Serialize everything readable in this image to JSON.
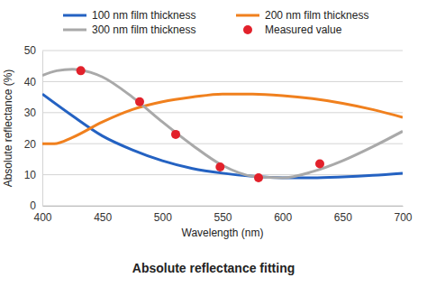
{
  "chart_data": {
    "type": "line",
    "title": "Absolute reflectance fitting",
    "x_label": "Wavelength (nm)",
    "y_label": "Absolute reflectance (%)",
    "xlim": [
      400,
      700
    ],
    "xticks": [
      400,
      450,
      500,
      550,
      600,
      650,
      700
    ],
    "ylim": [
      0,
      50
    ],
    "yticks": [
      0,
      10,
      20,
      30,
      40,
      50
    ],
    "grid": true,
    "legend": "top",
    "series": [
      {
        "name": "100 nm film thickness",
        "color": "#2462c2",
        "type": "line",
        "x": [
          400,
          425,
          450,
          475,
          500,
          525,
          550,
          575,
          600,
          625,
          650,
          675,
          700
        ],
        "values": [
          36,
          29,
          22.5,
          18,
          14.5,
          12,
          10.5,
          9.5,
          9,
          9,
          9.3,
          9.8,
          10.5
        ]
      },
      {
        "name": "200 nm film thickness",
        "color": "#f0801e",
        "type": "line",
        "x": [
          400,
          410,
          425,
          450,
          475,
          500,
          525,
          550,
          575,
          600,
          625,
          650,
          675,
          700
        ],
        "values": [
          20,
          20,
          22,
          27,
          31,
          33.5,
          35,
          36,
          36,
          35.5,
          34.5,
          33,
          31,
          28.5
        ]
      },
      {
        "name": "300 nm film thickness",
        "color": "#a9a9a9",
        "type": "line",
        "x": [
          400,
          412,
          425,
          440,
          450,
          475,
          500,
          525,
          550,
          575,
          600,
          625,
          650,
          675,
          700
        ],
        "values": [
          42,
          43.5,
          44,
          43,
          41.5,
          35,
          27,
          19.5,
          13,
          9.5,
          9,
          11,
          14.5,
          19,
          24
        ]
      },
      {
        "name": "Measured value",
        "color": "#e2212b",
        "type": "scatter",
        "marker": "circle",
        "x": [
          432,
          481,
          511,
          548,
          580,
          631
        ],
        "values": [
          43.5,
          33.5,
          23,
          12.5,
          9,
          13.5
        ]
      }
    ]
  }
}
